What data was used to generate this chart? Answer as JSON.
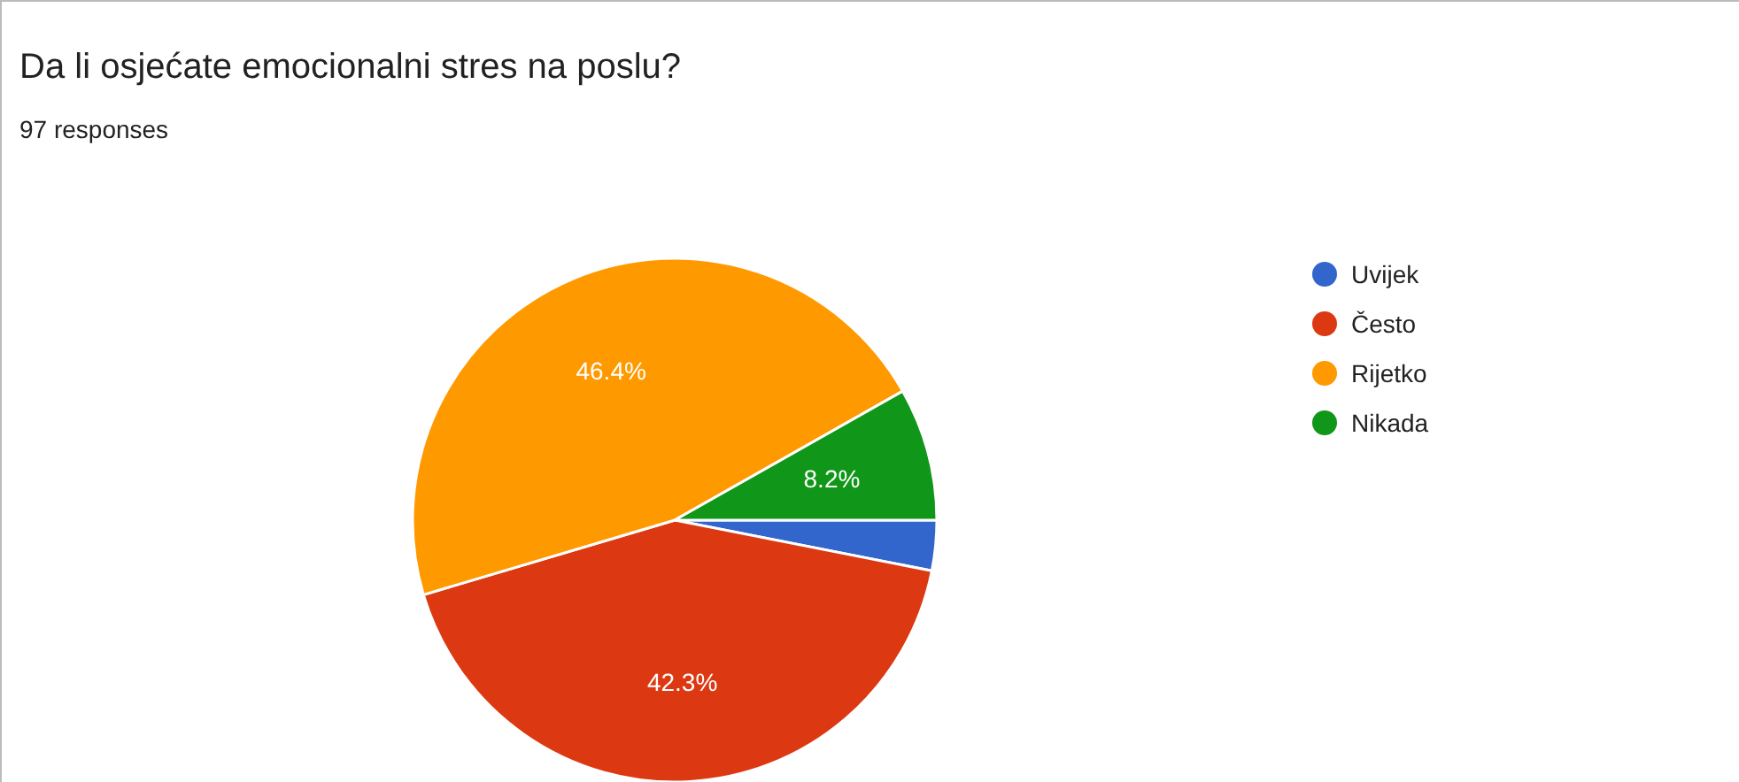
{
  "chart_data": {
    "type": "pie",
    "title": "Da li osjećate emocionalni stres na poslu?",
    "subtitle": "97 responses",
    "categories": [
      "Uvijek",
      "Često",
      "Rijetko",
      "Nikada"
    ],
    "values": [
      3.1,
      42.3,
      46.4,
      8.2
    ],
    "colors": [
      "#3366cc",
      "#dc3912",
      "#ff9900",
      "#109618"
    ],
    "value_labels": [
      null,
      "42.3%",
      "46.4%",
      "8.2%"
    ],
    "legend": "right"
  }
}
